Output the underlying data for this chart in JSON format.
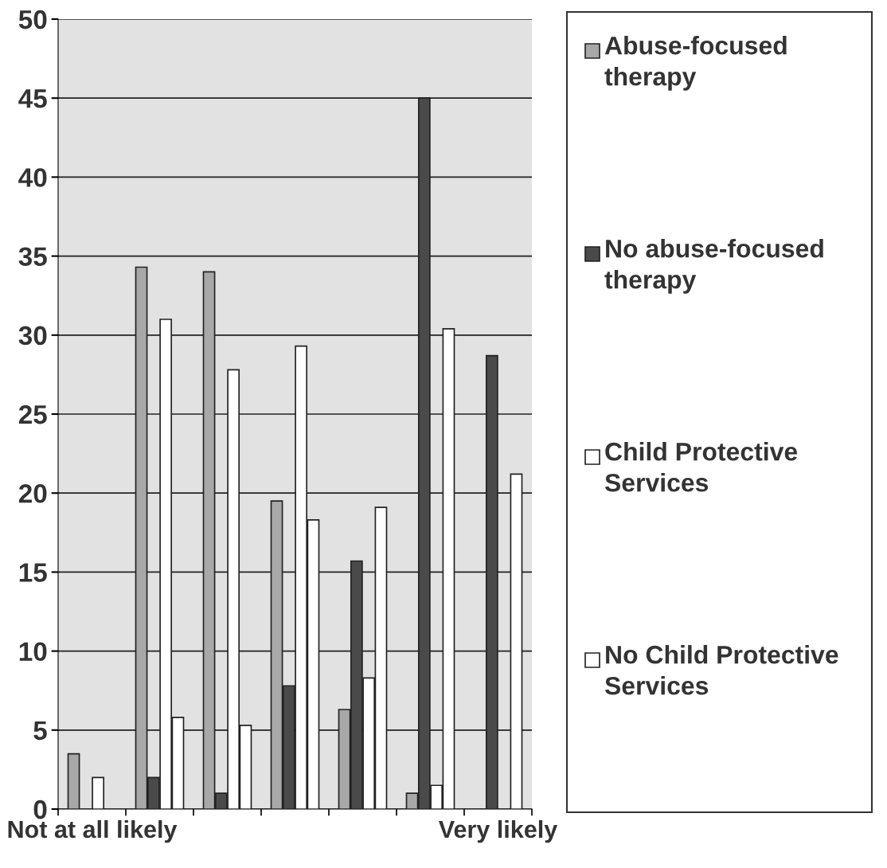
{
  "chart_data": {
    "type": "bar",
    "categories": [
      "Not at all likely",
      null,
      null,
      null,
      null,
      null,
      "Very likely"
    ],
    "series": [
      {
        "name": "Abuse-focused therapy",
        "color": "#a8a8a8",
        "values": [
          3.5,
          34.3,
          34,
          19.5,
          6.3,
          1,
          0
        ]
      },
      {
        "name": "No abuse-focused therapy",
        "color": "#4a4a4a",
        "values": [
          0,
          2,
          1,
          7.8,
          15.7,
          45,
          28.7
        ]
      },
      {
        "name": "Child Protective Services",
        "color": "#ffffff",
        "values": [
          2,
          31,
          27.8,
          29.3,
          8.3,
          1.5,
          0
        ]
      },
      {
        "name": "No Child Protective Services",
        "color": "#ffffff",
        "values": [
          0,
          5.8,
          5.3,
          18.3,
          19.1,
          30.4,
          21.2
        ]
      }
    ],
    "ylim": [
      0,
      50
    ],
    "yticks": [
      0,
      5,
      10,
      15,
      20,
      25,
      30,
      35,
      40,
      45,
      50
    ],
    "grid": "y",
    "legend": "right"
  }
}
